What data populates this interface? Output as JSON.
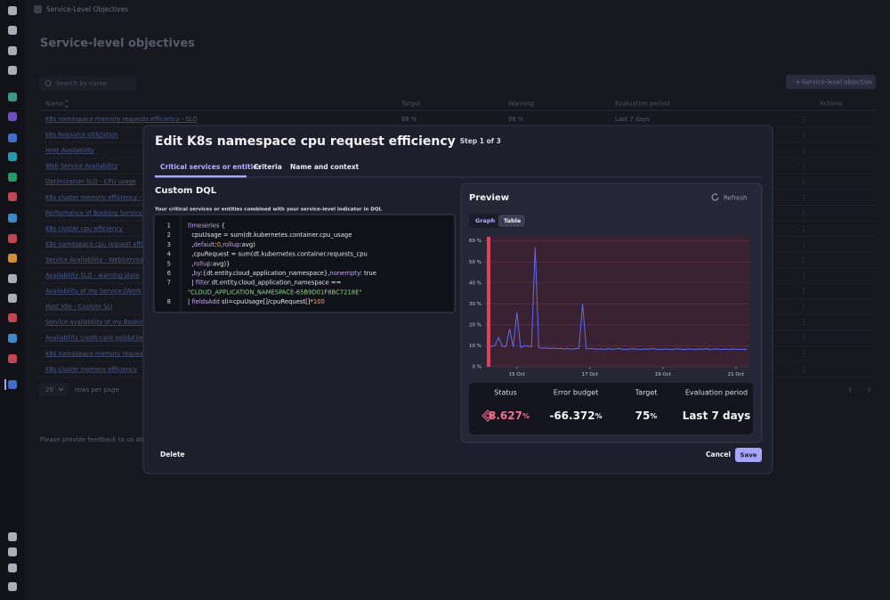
{
  "breadcrumb": "Service-Level Objectives",
  "page_title": "Service-level objectives",
  "search_placeholder": "Search by name",
  "add_button": "Service-level objective",
  "table": {
    "headers": [
      "Name",
      "Target",
      "Warning",
      "Evaluation period",
      "Actions"
    ],
    "rows": [
      [
        "K8s namespace memory requests efficiency - SLO",
        "88 %",
        "98 %",
        "Last 7 days"
      ],
      [
        "k8s Resource Utilization"
      ],
      [
        "Host Availability"
      ],
      [
        "Web Service Availability"
      ],
      [
        "Optimization SLO - CPU usage"
      ],
      [
        "K8s cluster memory efficiency -"
      ],
      [
        "Performance of Booking Service -"
      ],
      [
        "K8s cluster cpu efficiency"
      ],
      [
        "K8s namespace cpu request effic"
      ],
      [
        "Service Availability - WebService"
      ],
      [
        "Availability SLO - warning state"
      ],
      [
        "Availability of my Service [Work"
      ],
      [
        "Host Idle - Custom SLI"
      ],
      [
        "Service availability of my Booking"
      ],
      [
        "Availability credit-card validation"
      ],
      [
        "K8s namespace memory request"
      ],
      [
        "K8s cluster memory efficiency"
      ]
    ]
  },
  "pagination": {
    "page_size": "20",
    "label": "rows per page"
  },
  "feedback": "Please provide feedback to us abou",
  "modal": {
    "title": "Edit K8s namespace cpu request efficiency",
    "step": "Step 1 of 3",
    "tabs": [
      "Critical services or entities",
      "Criteria",
      "Name and context"
    ],
    "section_title": "Custom DQL",
    "section_description": "Your critical services or entities combined with your service-level indicator in DQL",
    "code": [
      {
        "n": 1,
        "segs": [
          {
            "t": "timeseries",
            "c": "#c9a2f7"
          },
          {
            "t": " {",
            "c": "#e6e6ee"
          }
        ]
      },
      {
        "n": 2,
        "segs": [
          {
            "t": "  cpuUsage = sum(dt.kubernetes.container.cpu_usage",
            "c": "#e6e6ee"
          }
        ]
      },
      {
        "n": 3,
        "segs": [
          {
            "t": "  ,",
            "c": "#e6e6ee"
          },
          {
            "t": "default",
            "c": "#c9a2f7"
          },
          {
            "t": ":",
            "c": "#e6e6ee"
          },
          {
            "t": "0",
            "c": "#f0a46a"
          },
          {
            "t": ",",
            "c": "#e6e6ee"
          },
          {
            "t": "rollup",
            "c": "#c9a2f7"
          },
          {
            "t": ":avg)",
            "c": "#e6e6ee"
          }
        ]
      },
      {
        "n": 4,
        "segs": [
          {
            "t": "  ,cpuRequest = sum(dt.kubernetes.container.requests_cpu",
            "c": "#e6e6ee"
          }
        ]
      },
      {
        "n": 5,
        "segs": [
          {
            "t": "  ,",
            "c": "#e6e6ee"
          },
          {
            "t": "rollup",
            "c": "#c9a2f7"
          },
          {
            "t": ":avg)}",
            "c": "#e6e6ee"
          }
        ]
      },
      {
        "n": 6,
        "segs": [
          {
            "t": "  ,",
            "c": "#e6e6ee"
          },
          {
            "t": "by",
            "c": "#c9a2f7"
          },
          {
            "t": ":{dt.entity.cloud_application_namespace},",
            "c": "#e6e6ee"
          },
          {
            "t": "nonempty",
            "c": "#c9a2f7"
          },
          {
            "t": ": true",
            "c": "#e6e6ee"
          }
        ]
      },
      {
        "n": 7,
        "segs": [
          {
            "t": "  | ",
            "c": "#e6e6ee"
          },
          {
            "t": "filter",
            "c": "#c9a2f7"
          },
          {
            "t": " dt.entity.cloud_application_namespace ==",
            "c": "#e6e6ee"
          }
        ]
      },
      {
        "segs": [
          {
            "t": "\"CLOUD_APPLICATION_NAMESPACE-65B9D01F8BC7218E\"",
            "c": "#8fd48a"
          }
        ]
      },
      {
        "n": 8,
        "segs": [
          {
            "t": "| ",
            "c": "#e6e6ee"
          },
          {
            "t": "fieldsAdd",
            "c": "#c9a2f7"
          },
          {
            "t": " sli=cpuUsage[]/cpuRequest[]*",
            "c": "#e6e6ee"
          },
          {
            "t": "100",
            "c": "#f0a46a"
          }
        ]
      }
    ],
    "preview": {
      "title": "Preview",
      "refresh": "Refresh",
      "toggle": [
        "Graph",
        "Table"
      ],
      "stats": [
        {
          "label": "Status",
          "value": "8.627",
          "unit": "%",
          "color": "#f2708e"
        },
        {
          "label": "Error budget",
          "value": "-66.372",
          "unit": "%",
          "color": "#f2f2f6"
        },
        {
          "label": "Target",
          "value": "75",
          "unit": "%",
          "color": "#f2f2f6"
        },
        {
          "label": "Evaluation period",
          "value": "Last 7 days",
          "color": "#f2f2f6"
        }
      ]
    },
    "buttons": {
      "delete": "Delete",
      "cancel": "Cancel",
      "save": "Save"
    }
  },
  "chart_data": {
    "type": "line",
    "ylim": [
      0,
      62
    ],
    "yticks": [
      {
        "value": 0,
        "label": "0 %"
      },
      {
        "value": 10,
        "label": "10 %"
      },
      {
        "value": 20,
        "label": "20 %"
      },
      {
        "value": 30,
        "label": "30 %"
      },
      {
        "value": 40,
        "label": "40 %"
      },
      {
        "value": 50,
        "label": "50 %"
      },
      {
        "value": 60,
        "label": "60 %"
      }
    ],
    "grid": true,
    "categories": [
      null,
      null,
      null,
      null,
      null,
      null,
      null,
      null,
      "15 Oct",
      null,
      null,
      null,
      null,
      null,
      null,
      null,
      null,
      null,
      null,
      null,
      null,
      null,
      null,
      null,
      null,
      null,
      null,
      null,
      "17 Oct",
      null,
      null,
      null,
      null,
      null,
      null,
      null,
      null,
      null,
      null,
      null,
      null,
      null,
      null,
      null,
      null,
      null,
      null,
      null,
      "19 Oct",
      null,
      null,
      null,
      null,
      null,
      null,
      null,
      null,
      null,
      null,
      null,
      null,
      null,
      null,
      null,
      null,
      null,
      null,
      null,
      "21 Oct",
      null,
      null,
      null
    ],
    "series": [
      {
        "color": "#5b6cf2",
        "values": [
          9.5,
          9.8,
          10.2,
          14,
          9.6,
          9.8,
          18,
          9.5,
          26,
          9.2,
          10,
          9.8,
          9.5,
          57,
          9.2,
          8.8,
          9,
          8.7,
          8.9,
          8.6,
          8.8,
          8.5,
          8.7,
          8.4,
          8.6,
          8.8,
          30,
          8.5,
          8.7,
          8.6,
          8.4,
          8.5,
          8.3,
          8.6,
          8.4,
          8.5,
          8.7,
          8.4,
          8.3,
          8.5,
          8.6,
          8.4,
          8.3,
          8.5,
          8.4,
          8.6,
          8.5,
          8.3,
          8.4,
          8.5,
          8.3,
          8.4,
          8.6,
          8.4,
          8.3,
          8.5,
          8.4,
          8.3,
          8.5,
          8.4,
          8.6,
          8.3,
          8.4,
          8.5,
          8.3,
          8.4,
          8.3,
          8.5,
          8.4,
          8.3,
          8.4,
          8.3
        ]
      }
    ]
  }
}
